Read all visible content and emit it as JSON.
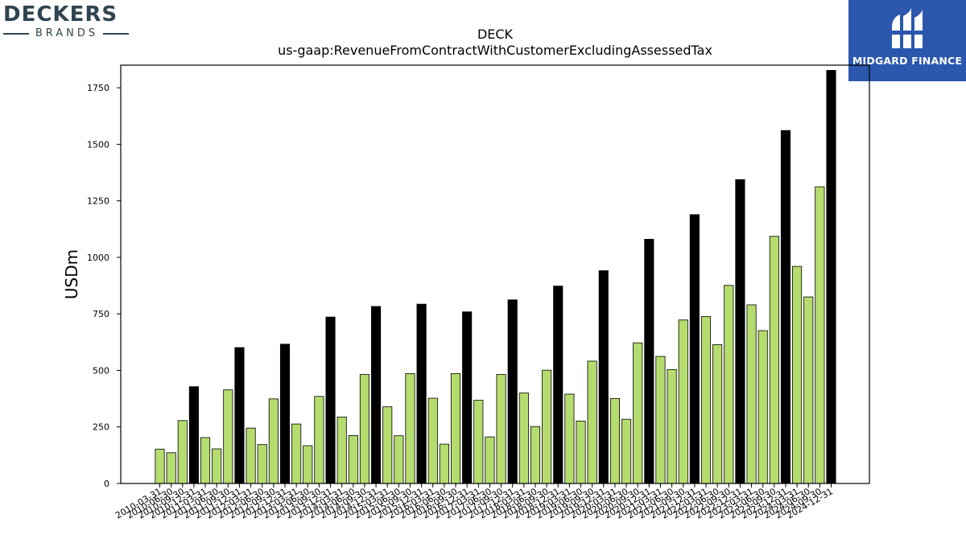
{
  "branding": {
    "left_name": "DECKERS",
    "left_sub": "BRANDS",
    "right_name": "MIDGARD FINANCE",
    "right_logo_icon": "midgard-logo-icon",
    "right_bg": "#2b57ad"
  },
  "chart_data": {
    "type": "bar",
    "title": "DECK",
    "subtitle": "us-gaap:RevenueFromContractWithCustomerExcludingAssessedTax",
    "xlabel": "",
    "ylabel": "USDm",
    "ylim": [
      0,
      1850
    ],
    "yticks": [
      0,
      250,
      500,
      750,
      1000,
      1250,
      1500,
      1750
    ],
    "grid": false,
    "colors": {
      "quarter": "#b5dc6e",
      "annual": "#000000",
      "edge": "#000000"
    },
    "categories": [
      "2010-03-31",
      "2010-06-30",
      "2010-09-30",
      "2010-12-31",
      "2011-03-31",
      "2011-06-30",
      "2011-09-30",
      "2011-12-31",
      "2012-03-31",
      "2012-06-30",
      "2012-09-30",
      "2012-12-31",
      "2013-03-31",
      "2013-06-30",
      "2013-09-30",
      "2013-12-31",
      "2014-03-31",
      "2014-06-30",
      "2014-09-30",
      "2014-12-31",
      "2015-03-31",
      "2015-06-30",
      "2015-09-30",
      "2015-12-31",
      "2016-03-31",
      "2016-06-30",
      "2016-09-30",
      "2016-12-31",
      "2017-03-31",
      "2017-06-30",
      "2017-09-30",
      "2017-12-31",
      "2018-03-31",
      "2018-06-30",
      "2018-09-30",
      "2018-12-31",
      "2019-03-31",
      "2019-06-30",
      "2019-09-30",
      "2019-12-31",
      "2020-03-31",
      "2020-06-30",
      "2020-09-30",
      "2020-12-31",
      "2021-03-31",
      "2021-06-30",
      "2021-09-30",
      "2021-12-31",
      "2022-03-31",
      "2022-06-30",
      "2022-09-30",
      "2022-12-31",
      "2023-03-31",
      "2023-06-30",
      "2023-09-30",
      "2023-12-31",
      "2024-03-31",
      "2024-06-30",
      "2024-09-30",
      "2024-12-31"
    ],
    "values": [
      152,
      136,
      278,
      428,
      203,
      153,
      414,
      601,
      245,
      172,
      374,
      616,
      263,
      167,
      385,
      736,
      294,
      212,
      482,
      783,
      339,
      211,
      486,
      793,
      377,
      174,
      486,
      759,
      368,
      206,
      482,
      812,
      400,
      252,
      501,
      873,
      395,
      276,
      541,
      941,
      376,
      284,
      622,
      1080,
      562,
      504,
      723,
      1189,
      738,
      614,
      876,
      1344,
      790,
      676,
      1093,
      1561,
      960,
      825,
      1312,
      1827
    ],
    "annual_mask": [
      false,
      false,
      false,
      true,
      false,
      false,
      false,
      true,
      false,
      false,
      false,
      true,
      false,
      false,
      false,
      true,
      false,
      false,
      false,
      true,
      false,
      false,
      false,
      true,
      false,
      false,
      false,
      true,
      false,
      false,
      false,
      true,
      false,
      false,
      false,
      true,
      false,
      false,
      false,
      true,
      false,
      false,
      false,
      true,
      false,
      false,
      false,
      true,
      false,
      false,
      false,
      true,
      false,
      false,
      false,
      true,
      false,
      false,
      false,
      true
    ]
  }
}
